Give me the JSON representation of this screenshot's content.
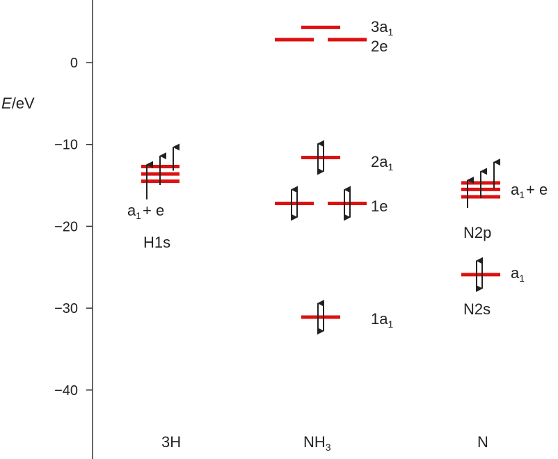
{
  "axis": {
    "title_symbol": "E",
    "title_unit": "/eV",
    "ticks": [
      {
        "value": 0,
        "label": "0"
      },
      {
        "value": -10,
        "label": "−10"
      },
      {
        "value": -20,
        "label": "−20"
      },
      {
        "value": -30,
        "label": "−30"
      },
      {
        "value": -40,
        "label": "−40"
      }
    ]
  },
  "columns": {
    "h3": "3H",
    "nh3_main": "NH",
    "nh3_sub": "3",
    "n": "N"
  },
  "labels": {
    "h_ao": {
      "main": "a",
      "sub": "1",
      "rest": "+ e",
      "second": "H1s"
    },
    "mo_3a1": {
      "main": "3a",
      "sub": "1"
    },
    "mo_2e": {
      "main": "2e"
    },
    "mo_2a1": {
      "main": "2a",
      "sub": "1"
    },
    "mo_1e": {
      "main": "1e"
    },
    "mo_1a1": {
      "main": "1a",
      "sub": "1"
    },
    "n_2p": {
      "main": "a",
      "sub": "1",
      "rest": "+ e",
      "second": "N2p"
    },
    "n_2s": {
      "main": "a",
      "sub": "1",
      "second": "N2s"
    }
  },
  "colors": {
    "level": "#dd1111",
    "axis": "#333333",
    "arrow": "#222222"
  },
  "levels": {
    "h1s_energies": [
      -12.7,
      -13.6,
      -14.5
    ],
    "mo_3a1": 4.3,
    "mo_2e": 2.8,
    "mo_2a1": -11.6,
    "mo_1e": -17.2,
    "mo_1a1": -31.1,
    "n2p_energies": [
      -14.7,
      -15.5,
      -16.4
    ],
    "n2s": -25.9
  }
}
